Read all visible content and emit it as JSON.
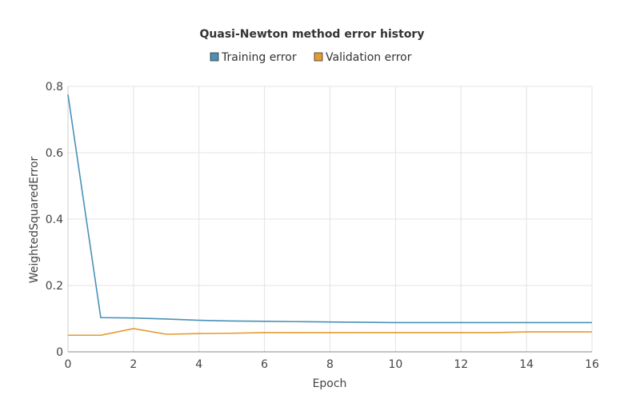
{
  "chart_data": {
    "type": "line",
    "title": "Quasi-Newton method error history",
    "xlabel": "Epoch",
    "ylabel": "WeightedSquaredError",
    "xlim": [
      0,
      16
    ],
    "ylim": [
      0,
      0.8
    ],
    "x_ticks": [
      0,
      2,
      4,
      6,
      8,
      10,
      12,
      14,
      16
    ],
    "y_ticks": [
      0,
      0.2,
      0.4,
      0.6,
      0.8
    ],
    "y_tick_labels": [
      "0",
      "0.2",
      "0.4",
      "0.6",
      "0.8"
    ],
    "grid": true,
    "legend_position": "top-center",
    "series": [
      {
        "name": "Training error",
        "color": "#4a90b8",
        "x": [
          0,
          1,
          2,
          3,
          4,
          5,
          6,
          7,
          8,
          9,
          10,
          11,
          12,
          13,
          14,
          15,
          16
        ],
        "values": [
          0.775,
          0.103,
          0.102,
          0.099,
          0.095,
          0.093,
          0.092,
          0.091,
          0.09,
          0.089,
          0.088,
          0.088,
          0.088,
          0.088,
          0.088,
          0.088,
          0.088
        ]
      },
      {
        "name": "Validation error",
        "color": "#e59a2f",
        "x": [
          0,
          1,
          2,
          3,
          4,
          5,
          6,
          7,
          8,
          9,
          10,
          11,
          12,
          13,
          14,
          15,
          16
        ],
        "values": [
          0.05,
          0.05,
          0.07,
          0.053,
          0.055,
          0.056,
          0.058,
          0.058,
          0.058,
          0.058,
          0.058,
          0.058,
          0.058,
          0.058,
          0.06,
          0.06,
          0.06
        ]
      }
    ]
  }
}
